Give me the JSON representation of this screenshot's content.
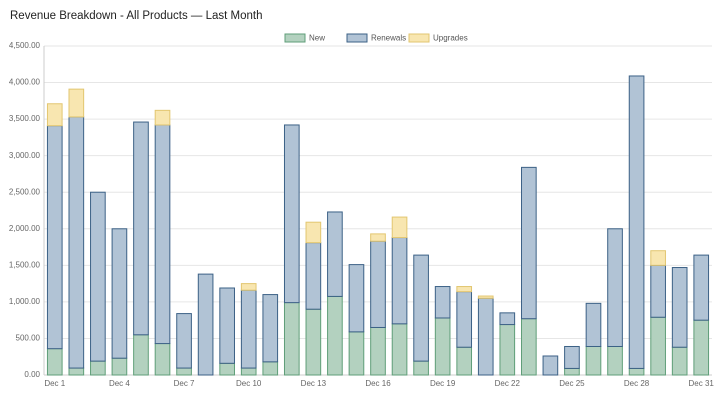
{
  "chart_data": {
    "type": "stacked-bar",
    "title": "Revenue Breakdown - All Products — Last Month",
    "categories": [
      "Dec 1",
      null,
      null,
      "Dec 4",
      null,
      null,
      "Dec 7",
      null,
      null,
      "Dec 10",
      null,
      null,
      "Dec 13",
      null,
      null,
      "Dec 16",
      null,
      null,
      "Dec 19",
      null,
      null,
      "Dec 22",
      null,
      null,
      "Dec 25",
      null,
      null,
      "Dec 28",
      null,
      null,
      "Dec 31"
    ],
    "series": [
      {
        "name": "New",
        "color": "#b3d1bf",
        "stroke": "#5f9e78",
        "values": [
          360,
          95,
          190,
          230,
          550,
          430,
          95,
          0,
          160,
          95,
          180,
          990,
          900,
          1075,
          590,
          650,
          700,
          190,
          780,
          380,
          0,
          690,
          770,
          0,
          90,
          390,
          390,
          90,
          790,
          380,
          750
        ]
      },
      {
        "name": "Renewals",
        "color": "#b1c3d5",
        "stroke": "#3c6186",
        "values": [
          3050,
          3435,
          2310,
          1770,
          2910,
          2990,
          745,
          1380,
          1030,
          1065,
          920,
          2430,
          910,
          1155,
          920,
          1180,
          1180,
          1450,
          430,
          760,
          1050,
          160,
          2070,
          260,
          300,
          590,
          1610,
          4000,
          710,
          1090,
          890
        ]
      },
      {
        "name": "Upgrades",
        "color": "#f8e6b0",
        "stroke": "#e2c670",
        "values": [
          300,
          380,
          0,
          0,
          0,
          200,
          0,
          0,
          0,
          90,
          0,
          0,
          280,
          0,
          0,
          100,
          280,
          0,
          0,
          70,
          30,
          0,
          0,
          0,
          0,
          0,
          0,
          0,
          200,
          0,
          0
        ]
      }
    ],
    "ylim": [
      0,
      4500
    ],
    "yticks": [
      {
        "value": 0,
        "label": "0.00"
      },
      {
        "value": 500,
        "label": "500.00"
      },
      {
        "value": 1000,
        "label": "1,000.00"
      },
      {
        "value": 1500,
        "label": "1,500.00"
      },
      {
        "value": 2000,
        "label": "2,000.00"
      },
      {
        "value": 2500,
        "label": "2,500.00"
      },
      {
        "value": 3000,
        "label": "3,000.00"
      },
      {
        "value": 3500,
        "label": "3,500.00"
      },
      {
        "value": 4000,
        "label": "4,000.00"
      },
      {
        "value": 4500,
        "label": "4,500.00"
      }
    ],
    "grid": true,
    "legend": "top"
  }
}
